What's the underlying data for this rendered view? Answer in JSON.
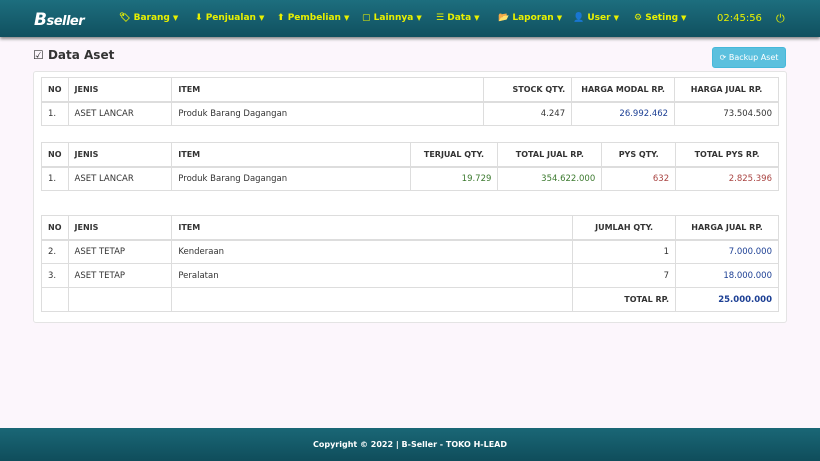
{
  "nav": {
    "logo": "B-seller",
    "menus": [
      {
        "icon": "tag-icon",
        "glyph": "🏷",
        "label": "Barang"
      },
      {
        "icon": "arrow-down-icon",
        "glyph": "⬇",
        "label": "Penjualan"
      },
      {
        "icon": "arrow-up-icon",
        "glyph": "⬆",
        "label": "Pembelian"
      },
      {
        "icon": "square-icon",
        "glyph": "▢",
        "label": "Lainnya"
      },
      {
        "icon": "list-icon",
        "glyph": "☰",
        "label": "Data"
      },
      {
        "icon": "folder-icon",
        "glyph": "📂",
        "label": "Laporan"
      },
      {
        "icon": "user-icon",
        "glyph": "👤",
        "label": "User"
      },
      {
        "icon": "gear-icon",
        "glyph": "⚙",
        "label": "Seting"
      }
    ],
    "clock": "02:45:56"
  },
  "page": {
    "title": "Data Aset",
    "backup_label": "Backup Aset"
  },
  "table1": {
    "headers": [
      "NO",
      "JENIS",
      "ITEM",
      "STOCK QTY.",
      "HARGA MODAL RP.",
      "HARGA JUAL RP."
    ],
    "rows": [
      [
        "1.",
        "ASET LANCAR",
        "Produk Barang Dagangan",
        "4.247",
        "26.992.462",
        "73.504.500"
      ]
    ]
  },
  "table2": {
    "headers": [
      "NO",
      "JENIS",
      "ITEM",
      "TERJUAL QTY.",
      "TOTAL JUAL RP.",
      "PYS QTY.",
      "TOTAL PYS RP."
    ],
    "rows": [
      [
        "1.",
        "ASET LANCAR",
        "Produk Barang Dagangan",
        "19.729",
        "354.622.000",
        "632",
        "2.825.396"
      ]
    ]
  },
  "table3": {
    "headers": [
      "NO",
      "JENIS",
      "ITEM",
      "JUMLAH QTY.",
      "HARGA JUAL RP."
    ],
    "rows": [
      [
        "2.",
        "ASET TETAP",
        "Kenderaan",
        "1",
        "7.000.000"
      ],
      [
        "3.",
        "ASET TETAP",
        "Peralatan",
        "7",
        "18.000.000"
      ]
    ],
    "total_label": "TOTAL RP.",
    "total_value": "25.000.000"
  },
  "footer": "Copyright © 2022 | B-Seller - TOKO H-LEAD"
}
